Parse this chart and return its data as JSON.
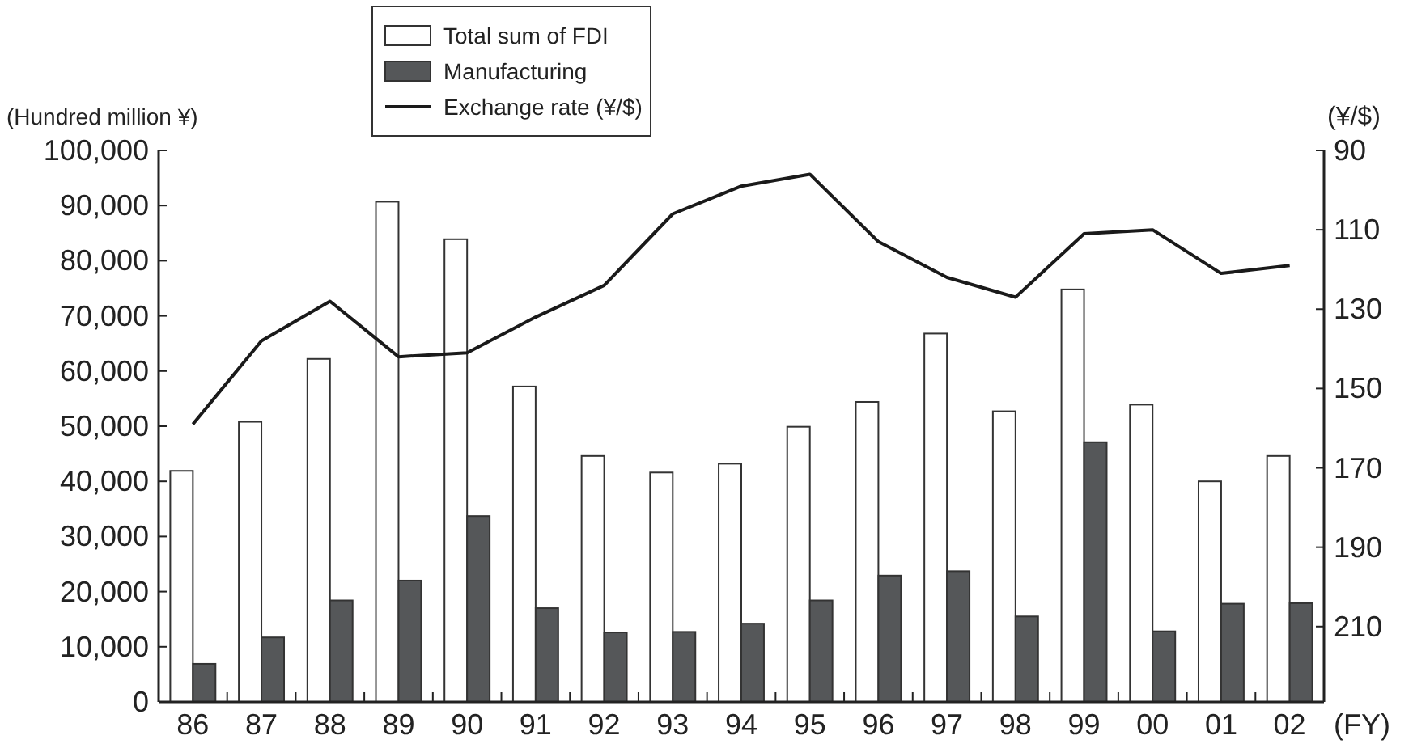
{
  "chart_data": {
    "type": "bar",
    "categories": [
      "86",
      "87",
      "88",
      "89",
      "90",
      "91",
      "92",
      "93",
      "94",
      "95",
      "96",
      "97",
      "98",
      "99",
      "00",
      "01",
      "02"
    ],
    "series": [
      {
        "name": "Total sum of FDI",
        "color": "#ffffff",
        "values": [
          41900,
          50800,
          62200,
          90700,
          83900,
          57200,
          44600,
          41600,
          43200,
          49900,
          54400,
          66800,
          52700,
          74800,
          53900,
          40000,
          44600
        ]
      },
      {
        "name": "Manufacturing",
        "color": "#555759",
        "values": [
          6900,
          11700,
          18400,
          22000,
          33700,
          17000,
          12600,
          12700,
          14200,
          18400,
          22900,
          23700,
          15500,
          47100,
          12800,
          17800,
          17900
        ]
      },
      {
        "name": "Exchange rate (¥/$)",
        "type": "line",
        "axis": "y2",
        "color": "#1a1a1a",
        "values": [
          159,
          138,
          128,
          142,
          141,
          132,
          124,
          106,
          99,
          96,
          113,
          122,
          127,
          111,
          110,
          121,
          119
        ]
      }
    ],
    "xlabel": "(FY)",
    "ylabel": "(Hundred million ¥)",
    "y2label": "(¥/$)",
    "ylim": [
      0,
      100000
    ],
    "yticks": [
      {
        "value": 0,
        "label": "0"
      },
      {
        "value": 10000,
        "label": "10,000"
      },
      {
        "value": 20000,
        "label": "20,000"
      },
      {
        "value": 30000,
        "label": "30,000"
      },
      {
        "value": 40000,
        "label": "40,000"
      },
      {
        "value": 50000,
        "label": "50,000"
      },
      {
        "value": 60000,
        "label": "60,000"
      },
      {
        "value": 70000,
        "label": "70,000"
      },
      {
        "value": 80000,
        "label": "80,000"
      },
      {
        "value": 90000,
        "label": "90,000"
      },
      {
        "value": 100000,
        "label": "100,000"
      }
    ],
    "y2lim": [
      229,
      90
    ],
    "y2ticks": [
      90,
      110,
      130,
      150,
      170,
      190,
      210
    ],
    "legend": "top",
    "grid": false
  }
}
